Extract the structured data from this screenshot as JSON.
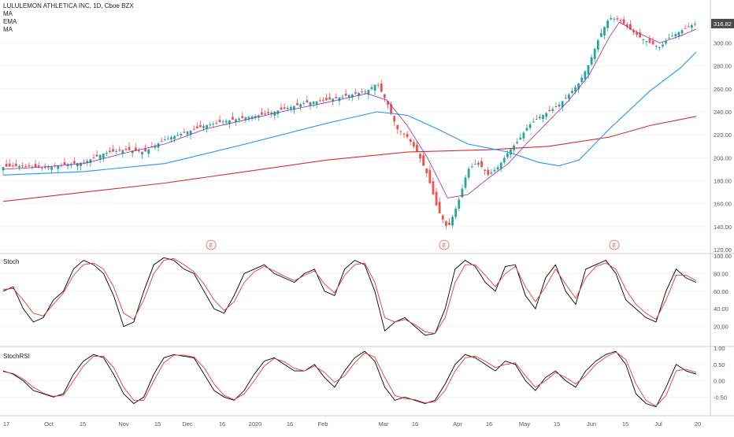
{
  "header": {
    "symbol_line": "LULULEMON ATHLETICA INC, 1D, Cboe BZX",
    "indicators": [
      "MA",
      "EMA",
      "MA"
    ]
  },
  "colors": {
    "up": "#26a69a",
    "down": "#ef5350",
    "ma_fast": "#9c27b0",
    "ema": "#2196f3",
    "ma_slow": "#d32f2f",
    "stoch_k": "#000000",
    "stoch_d": "#e53935",
    "axis_text": "#555555",
    "grid": "#e8e8e8"
  },
  "panes": {
    "stoch_label": "Stoch",
    "stochrsi_label": "StochRSI"
  },
  "chart_data": [
    {
      "type": "candlestick",
      "title": "LULULEMON ATHLETICA INC, 1D, Cboe BZX",
      "y_ticks": [
        "120.00",
        "140.00",
        "160.00",
        "180.00",
        "200.00",
        "220.00",
        "240.00",
        "260.00",
        "280.00",
        "300.00"
      ],
      "last_price_label": "316.82",
      "ylim": [
        118,
        325
      ],
      "x_tick_labels": [
        "17",
        "Oct",
        "15",
        "Nov",
        "15",
        "Dec",
        "16",
        "2020",
        "16",
        "Feb",
        "Mar",
        "16",
        "Apr",
        "16",
        "May",
        "15",
        "Jun",
        "15",
        "Jul",
        "20"
      ],
      "earnings_markers": [
        "E",
        "E",
        "E"
      ],
      "price_path": [
        [
          0,
          192
        ],
        [
          10,
          193
        ],
        [
          20,
          191
        ],
        [
          30,
          194
        ],
        [
          40,
          196
        ],
        [
          50,
          204
        ],
        [
          60,
          207
        ],
        [
          70,
          205
        ],
        [
          80,
          216
        ],
        [
          90,
          222
        ],
        [
          100,
          228
        ],
        [
          110,
          232
        ],
        [
          120,
          235
        ],
        [
          130,
          238
        ],
        [
          140,
          243
        ],
        [
          150,
          248
        ],
        [
          160,
          250
        ],
        [
          170,
          254
        ],
        [
          180,
          258
        ],
        [
          185,
          265
        ],
        [
          190,
          248
        ],
        [
          195,
          225
        ],
        [
          200,
          218
        ],
        [
          205,
          205
        ],
        [
          210,
          185
        ],
        [
          215,
          155
        ],
        [
          220,
          138
        ],
        [
          225,
          160
        ],
        [
          230,
          190
        ],
        [
          235,
          196
        ],
        [
          240,
          185
        ],
        [
          245,
          192
        ],
        [
          250,
          205
        ],
        [
          255,
          215
        ],
        [
          260,
          228
        ],
        [
          265,
          235
        ],
        [
          270,
          240
        ],
        [
          275,
          246
        ],
        [
          280,
          255
        ],
        [
          285,
          265
        ],
        [
          290,
          282
        ],
        [
          295,
          305
        ],
        [
          300,
          322
        ],
        [
          305,
          320
        ],
        [
          310,
          312
        ],
        [
          315,
          305
        ],
        [
          320,
          300
        ],
        [
          325,
          296
        ],
        [
          330,
          305
        ],
        [
          335,
          310
        ],
        [
          340,
          315
        ],
        [
          343,
          316.82
        ]
      ],
      "ma_fast_path": [
        [
          0,
          190
        ],
        [
          20,
          192
        ],
        [
          40,
          195
        ],
        [
          60,
          204
        ],
        [
          80,
          212
        ],
        [
          100,
          225
        ],
        [
          120,
          233
        ],
        [
          140,
          241
        ],
        [
          160,
          248
        ],
        [
          180,
          256
        ],
        [
          190,
          250
        ],
        [
          200,
          228
        ],
        [
          210,
          200
        ],
        [
          220,
          165
        ],
        [
          230,
          168
        ],
        [
          240,
          182
        ],
        [
          250,
          195
        ],
        [
          260,
          214
        ],
        [
          270,
          232
        ],
        [
          280,
          250
        ],
        [
          290,
          272
        ],
        [
          300,
          305
        ],
        [
          305,
          318
        ],
        [
          315,
          308
        ],
        [
          325,
          300
        ],
        [
          335,
          306
        ],
        [
          343,
          312
        ]
      ],
      "ema_path": [
        [
          0,
          185
        ],
        [
          40,
          188
        ],
        [
          80,
          195
        ],
        [
          120,
          212
        ],
        [
          160,
          230
        ],
        [
          185,
          240
        ],
        [
          200,
          237
        ],
        [
          215,
          225
        ],
        [
          230,
          212
        ],
        [
          250,
          205
        ],
        [
          265,
          196
        ],
        [
          275,
          193
        ],
        [
          285,
          198
        ],
        [
          300,
          225
        ],
        [
          320,
          258
        ],
        [
          335,
          278
        ],
        [
          343,
          292
        ]
      ],
      "ma_slow_path": [
        [
          0,
          162
        ],
        [
          40,
          170
        ],
        [
          80,
          178
        ],
        [
          120,
          188
        ],
        [
          160,
          198
        ],
        [
          200,
          205
        ],
        [
          240,
          207
        ],
        [
          270,
          210
        ],
        [
          300,
          218
        ],
        [
          320,
          228
        ],
        [
          343,
          236
        ]
      ]
    },
    {
      "type": "line",
      "title": "Stoch",
      "ylim": [
        0,
        100
      ],
      "y_ticks": [
        "20.00",
        "40.00",
        "60.00",
        "80.00",
        "100.00"
      ],
      "series": [
        {
          "values": [
            60,
            65,
            40,
            25,
            30,
            50,
            60,
            85,
            95,
            90,
            80,
            55,
            20,
            25,
            60,
            90,
            98,
            95,
            85,
            80,
            60,
            40,
            35,
            55,
            80,
            85,
            90,
            80,
            75,
            70,
            80,
            85,
            60,
            55,
            85,
            95,
            90,
            60,
            15,
            25,
            30,
            20,
            10,
            12,
            40,
            85,
            95,
            88,
            70,
            60,
            88,
            90,
            55,
            40,
            75,
            90,
            60,
            45,
            85,
            90,
            95,
            80,
            50,
            40,
            30,
            25,
            60,
            85,
            75,
            70
          ]
        },
        {
          "values": [
            62,
            63,
            50,
            35,
            32,
            45,
            58,
            78,
            90,
            92,
            85,
            65,
            35,
            28,
            50,
            80,
            95,
            97,
            90,
            82,
            68,
            50,
            38,
            48,
            70,
            82,
            88,
            83,
            77,
            72,
            78,
            83,
            68,
            58,
            78,
            90,
            92,
            70,
            30,
            25,
            28,
            22,
            14,
            12,
            30,
            70,
            90,
            90,
            78,
            65,
            80,
            88,
            65,
            48,
            65,
            85,
            68,
            52,
            75,
            88,
            92,
            85,
            62,
            45,
            35,
            28,
            50,
            78,
            78,
            72
          ]
        }
      ]
    },
    {
      "type": "line",
      "title": "StochRSI",
      "ylim": [
        -1,
        1
      ],
      "y_ticks": [
        "-0.50",
        "0.00",
        "0.50",
        "1.00"
      ],
      "series": [
        {
          "values": [
            0.3,
            0.2,
            0.0,
            -0.3,
            -0.4,
            -0.5,
            -0.4,
            0.2,
            0.6,
            0.8,
            0.7,
            0.2,
            -0.4,
            -0.7,
            -0.5,
            0.2,
            0.7,
            0.8,
            0.75,
            0.7,
            0.2,
            -0.3,
            -0.5,
            -0.6,
            -0.3,
            0.2,
            0.6,
            0.7,
            0.5,
            0.3,
            0.3,
            0.5,
            0.1,
            -0.2,
            0.3,
            0.7,
            0.9,
            0.6,
            -0.2,
            -0.6,
            -0.5,
            -0.6,
            -0.7,
            -0.6,
            -0.1,
            0.5,
            0.8,
            0.7,
            0.5,
            0.3,
            0.6,
            0.5,
            0.0,
            -0.3,
            0.1,
            0.3,
            0.0,
            -0.2,
            0.3,
            0.6,
            0.8,
            0.9,
            0.5,
            -0.4,
            -0.7,
            -0.8,
            -0.2,
            0.5,
            0.3,
            0.2
          ]
        },
        {
          "values": [
            0.28,
            0.22,
            0.05,
            -0.2,
            -0.38,
            -0.48,
            -0.45,
            0.0,
            0.45,
            0.75,
            0.75,
            0.4,
            -0.2,
            -0.6,
            -0.6,
            0.0,
            0.55,
            0.78,
            0.78,
            0.72,
            0.4,
            -0.1,
            -0.45,
            -0.58,
            -0.4,
            0.0,
            0.45,
            0.68,
            0.58,
            0.38,
            0.3,
            0.45,
            0.25,
            -0.05,
            0.15,
            0.55,
            0.85,
            0.72,
            0.1,
            -0.45,
            -0.55,
            -0.58,
            -0.68,
            -0.65,
            -0.3,
            0.3,
            0.7,
            0.75,
            0.6,
            0.4,
            0.5,
            0.55,
            0.15,
            -0.2,
            0.0,
            0.25,
            0.1,
            -0.1,
            0.15,
            0.5,
            0.72,
            0.88,
            0.65,
            -0.1,
            -0.6,
            -0.78,
            -0.45,
            0.3,
            0.35,
            0.25
          ]
        }
      ]
    }
  ]
}
